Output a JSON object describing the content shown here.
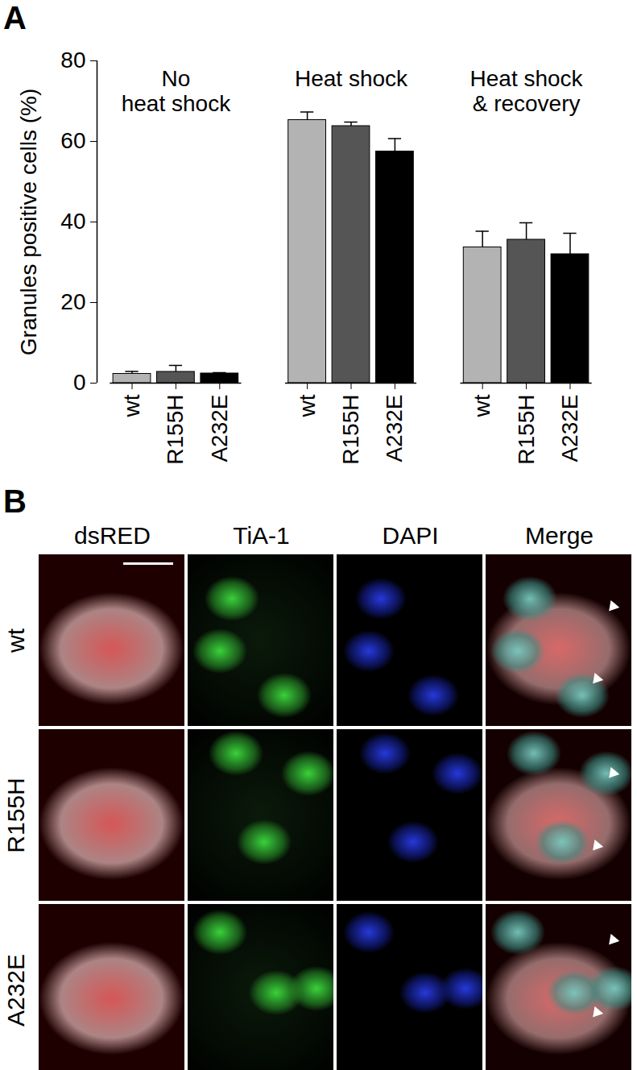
{
  "panels": [
    "A",
    "B"
  ],
  "chart_data": {
    "type": "bar",
    "y_label": "Granules positive cells (%)",
    "groups": [
      "No\nheat shock",
      "Heat shock",
      "Heat shock\n& recovery"
    ],
    "categories": [
      "wt",
      "R155H",
      "A232E",
      "wt",
      "R155H",
      "A232E",
      "wt",
      "R155H",
      "A232E"
    ],
    "values": [
      2.3,
      2.8,
      2.4,
      65.3,
      63.8,
      57.5,
      33.7,
      35.6,
      32.0
    ],
    "errors": [
      0.6,
      1.6,
      0.2,
      2.0,
      1.0,
      3.2,
      4.0,
      4.2,
      5.2
    ],
    "colors": [
      "#b3b3b3",
      "#555555",
      "#000000",
      "#b3b3b3",
      "#555555",
      "#000000",
      "#b3b3b3",
      "#555555",
      "#000000"
    ],
    "ylim": [
      0,
      80
    ],
    "yticks": [
      0,
      20,
      40,
      60,
      80
    ],
    "grid": false
  },
  "image_grid": {
    "columns": [
      "dsRED",
      "TiA-1",
      "DAPI",
      "Merge"
    ],
    "rows": [
      "wt",
      "R155H",
      "A232E"
    ]
  }
}
